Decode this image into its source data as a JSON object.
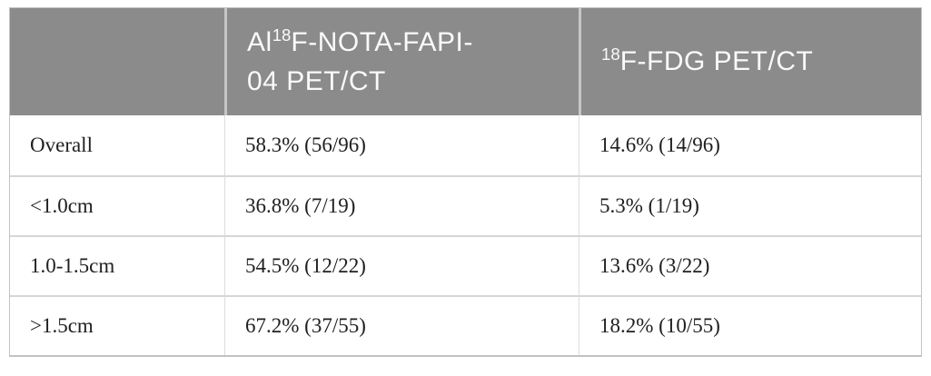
{
  "colors": {
    "header_bg": "#8b8b8b",
    "header_text": "#fafafa",
    "body_text": "#202020",
    "border_outer": "#c2c2c2",
    "border_inner": "#d6d6d6"
  },
  "table": {
    "header": {
      "col1": "",
      "col2": {
        "pre": "Al",
        "sup": "18",
        "line1_rest": "F-NOTA-FAPI-",
        "line2": "04 PET/CT"
      },
      "col3": {
        "sup": "18",
        "rest": "F-FDG PET/CT"
      }
    },
    "rows": [
      {
        "label": "Overall",
        "fapi": "58.3% (56/96)",
        "fdg": "14.6% (14/96)"
      },
      {
        "label": "<1.0cm",
        "fapi": "36.8% (7/19)",
        "fdg": "5.3% (1/19)"
      },
      {
        "label": "1.0-1.5cm",
        "fapi": "54.5% (12/22)",
        "fdg": "13.6% (3/22)"
      },
      {
        "label": ">1.5cm",
        "fapi": "67.2% (37/55)",
        "fdg": "18.2% (10/55)"
      }
    ]
  }
}
